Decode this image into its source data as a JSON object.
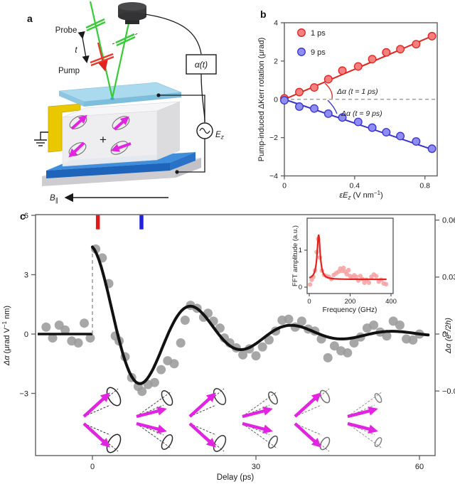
{
  "panels": {
    "a": "a",
    "b": "b",
    "c": "c"
  },
  "panel_a": {
    "probe_label": "Probe",
    "pump_label": "Pump",
    "delay_label": "t",
    "alpha_box_label": "α(t)",
    "field_label_main": "E",
    "field_label_sub": "z",
    "bfield_main": "B",
    "bfield_sub": "∥",
    "plus_sign": "+"
  },
  "colors": {
    "red": "#e0231e",
    "red_fill": "#f48080",
    "blue": "#3833cf",
    "blue_fill": "#8f8cf2",
    "gray_point": "#9b9b9b",
    "curve_black": "#111111",
    "frame": "#5f5f5f",
    "magenta": "#e224e2",
    "green_beam": "#35cc35",
    "pump_red": "#e8372b",
    "yellow_electrode": "#eac800",
    "glass_blue": "#9fd4ec",
    "glass_edge": "#6fb7d8",
    "slab_blue_top": "#3e8edb",
    "slab_blue_front": "#1d64ba",
    "slab_blue_side": "#2a72c8",
    "crystal_front": "#ededf0",
    "crystal_top": "#f6f6f8",
    "crystal_side": "#dcdcdf",
    "substrate_front": "#cdcdd1",
    "substrate_top": "#dfdfe3",
    "substrate_side": "#c2c2c6",
    "detector": "#3a3a3c",
    "inset_red": "#e8211c",
    "inset_pink": "#f7a0a0",
    "marker_red": "#e81717",
    "marker_blue": "#2222dd",
    "dashed_gray": "#909090"
  },
  "chart_data": [
    {
      "id": "panel_b",
      "type": "scatter",
      "xlabel": "εEz (V nm−1)",
      "xlabel_parts": {
        "pre": "εE",
        "sub": "z",
        "mid": " (V nm",
        "sup": "−1",
        "post": ")"
      },
      "ylabel": "Pump-induced ΔKerr rotation (μrad)",
      "xlim": [
        0,
        0.87
      ],
      "ylim": [
        -4,
        4
      ],
      "xticks": [
        0,
        0.4,
        0.8
      ],
      "yticks": [
        -4,
        -2,
        0,
        2,
        4
      ],
      "zero_dashed_line": true,
      "legend_position": "top-left",
      "series": [
        {
          "name": "1 ps",
          "x": [
            0,
            0.085,
            0.17,
            0.25,
            0.33,
            0.42,
            0.5,
            0.58,
            0.66,
            0.75,
            0.84
          ],
          "y": [
            0.05,
            0.38,
            0.62,
            1.05,
            1.5,
            1.72,
            2.1,
            2.45,
            2.62,
            2.88,
            3.3
          ],
          "fit_x": [
            0,
            0.855
          ],
          "fit_y": [
            0,
            3.36
          ]
        },
        {
          "name": "9 ps",
          "x": [
            0,
            0.085,
            0.17,
            0.25,
            0.33,
            0.42,
            0.5,
            0.58,
            0.66,
            0.75,
            0.84
          ],
          "y": [
            -0.05,
            -0.38,
            -0.48,
            -0.75,
            -0.95,
            -1.18,
            -1.48,
            -1.72,
            -1.92,
            -2.2,
            -2.58
          ],
          "fit_x": [
            0,
            0.855
          ],
          "fit_y": [
            0,
            -2.66
          ]
        }
      ],
      "annotations": [
        "Δα (t = 1 ps)",
        "Δα (t = 9 ps)"
      ]
    },
    {
      "id": "panel_c_main",
      "type": "scatter+line",
      "xlabel": "Delay (ps)",
      "ylabel_left": "Δα (μrad V−1 nm)",
      "ylabel_left_parts": {
        "italic": "Δα",
        "pre": " (μrad V",
        "sup": "−1",
        "post": " nm)"
      },
      "ylabel_right": "Δα (e2/2h)",
      "ylabel_right_parts": {
        "italic": "Δα",
        "pre": " (e",
        "sup": "2",
        "post": "/2h)"
      },
      "xlim": [
        -10.4,
        62.9
      ],
      "ylim": [
        -6.2,
        6.1
      ],
      "xticks": [
        0,
        30,
        60
      ],
      "yticks_left": [
        -3,
        0,
        3,
        6
      ],
      "yticks_right": [
        -0.03,
        0,
        0.03,
        0.06
      ],
      "right_axis_units_per_left": 96,
      "delay_markers": [
        {
          "t_ps": 1,
          "color": "#e81717"
        },
        {
          "t_ps": 9,
          "color": "#2222dd"
        }
      ],
      "fit": {
        "model": "damped_cosine",
        "amplitude": 4.4,
        "tau_ps": 16,
        "period_ps": 18.5,
        "baseline_before_zero": 0,
        "step_at_zero": true
      },
      "scatter_x": [
        -8.5,
        -7.3,
        -6.1,
        -5.0,
        -3.8,
        -2.6,
        -1.5,
        -0.4,
        0.6,
        1.8,
        3.0,
        4.2,
        4.9,
        6.0,
        7.2,
        8.4,
        9.1,
        10.2,
        11.4,
        12.6,
        13.8,
        15.0,
        16.2,
        17.0,
        18.0,
        19.2,
        20.4,
        21.2,
        22.2,
        23.4,
        24.2,
        25.2,
        26.4,
        27.6,
        28.8,
        30.0,
        31.2,
        32.4,
        33.6,
        34.8,
        36.0,
        37.2,
        38.4,
        39.6,
        40.8,
        42.0,
        43.2,
        44.4,
        45.6,
        46.8,
        48.0,
        49.2,
        50.4,
        51.6,
        52.8,
        54.0,
        55.2,
        56.4,
        57.6,
        58.8,
        60.0
      ],
      "scatter_y": [
        0.35,
        -0.2,
        0.45,
        0.2,
        -0.35,
        -0.45,
        0.55,
        -0.2,
        4.3,
        3.85,
        2.55,
        -0.1,
        -0.35,
        -1.15,
        -2.2,
        -2.65,
        -2.9,
        -2.55,
        -2.45,
        -1.8,
        -1.35,
        -1.5,
        -0.45,
        0.7,
        1.45,
        1.3,
        0.85,
        1.05,
        0.65,
        0.3,
        -0.2,
        -0.45,
        -0.7,
        -1.05,
        -0.75,
        -1.1,
        -0.65,
        -0.3,
        0.15,
        0.7,
        0.75,
        0.35,
        0.65,
        0.25,
        0.15,
        -0.25,
        -1.2,
        -0.6,
        -0.85,
        -0.95,
        -0.45,
        -0.15,
        0.3,
        0.45,
        0.1,
        -0.1,
        0.65,
        0.45,
        -0.25,
        -0.3,
        0.0
      ]
    },
    {
      "id": "panel_c_inset",
      "type": "scatter+line",
      "xlabel": "Frequency (GHz)",
      "ylabel": "FFT amplitude (a.u.)",
      "xlim": [
        0,
        400
      ],
      "ylim": [
        0,
        1.85
      ],
      "xticks": [
        0,
        200,
        400
      ],
      "yticks": [
        0,
        1
      ],
      "fit": {
        "model": "lorentzian",
        "center_ghz": 46,
        "gamma_ghz": 9,
        "peak": 1.42,
        "baseline": 0.21
      },
      "scatter_x": [
        4,
        12,
        20,
        28,
        36,
        44,
        52,
        62,
        72,
        84,
        96,
        108,
        120,
        132,
        144,
        152,
        160,
        168,
        176,
        184,
        192,
        200,
        210,
        220,
        230,
        240,
        250,
        260,
        270,
        280,
        292,
        304,
        316,
        328,
        340,
        352,
        364,
        376
      ],
      "scatter_y": [
        0.07,
        0.2,
        0.28,
        0.45,
        0.95,
        1.3,
        0.8,
        0.45,
        0.33,
        0.3,
        0.28,
        0.22,
        0.33,
        0.38,
        0.42,
        0.5,
        0.44,
        0.52,
        0.42,
        0.35,
        0.46,
        0.3,
        0.26,
        0.32,
        0.28,
        0.18,
        0.3,
        0.22,
        0.12,
        0.2,
        0.12,
        0.28,
        0.34,
        0.3,
        0.15,
        0.2,
        0.1,
        0.08
      ]
    }
  ],
  "spin_snapshots": [
    {
      "mode": "open",
      "scale": 1.0,
      "opacity": 1.0
    },
    {
      "mode": "closed",
      "scale": 0.95,
      "opacity": 0.95
    },
    {
      "mode": "open",
      "scale": 0.88,
      "opacity": 0.9
    },
    {
      "mode": "closed",
      "scale": 0.78,
      "opacity": 0.8
    },
    {
      "mode": "open",
      "scale": 0.68,
      "opacity": 0.65
    },
    {
      "mode": "closed",
      "scale": 0.58,
      "opacity": 0.55
    }
  ]
}
